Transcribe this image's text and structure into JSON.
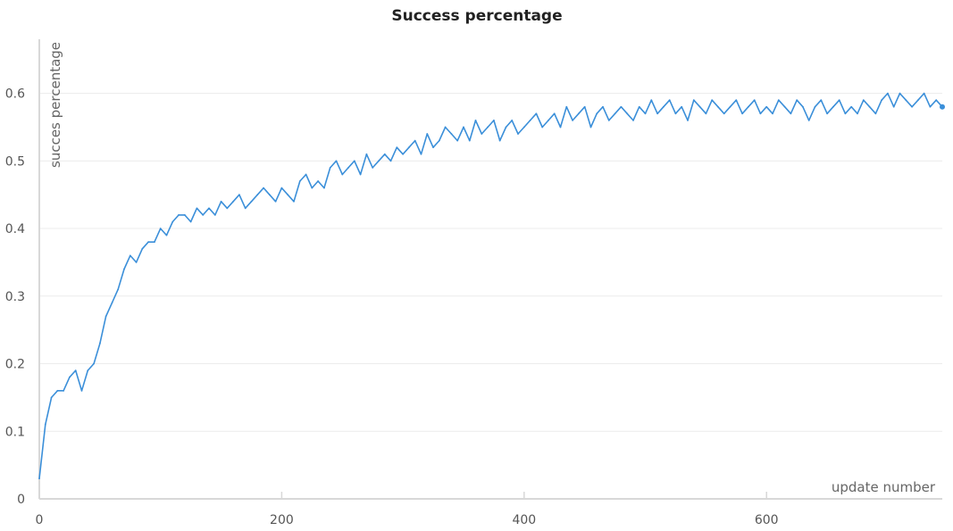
{
  "chart_data": {
    "type": "line",
    "title": "Success percentage",
    "xlabel": "update number",
    "ylabel": "succes percentage",
    "xlim": [
      0,
      745
    ],
    "ylim": [
      0,
      0.68
    ],
    "x_ticks": [
      0,
      200,
      400,
      600
    ],
    "y_ticks": [
      0,
      0.1,
      0.2,
      0.3,
      0.4,
      0.5,
      0.6
    ],
    "grid": "horizontal",
    "legend": "none",
    "colors": {
      "line": "#3b8fd9",
      "grid": "#ececec",
      "axis": "#d8d8d8"
    },
    "series": [
      {
        "x": [
          0,
          5,
          10,
          15,
          20,
          25,
          30,
          35,
          40,
          45,
          50,
          55,
          60,
          65,
          70,
          75,
          80,
          85,
          90,
          95,
          100,
          105,
          110,
          115,
          120,
          125,
          130,
          135,
          140,
          145,
          150,
          155,
          160,
          165,
          170,
          175,
          180,
          185,
          190,
          195,
          200,
          205,
          210,
          215,
          220,
          225,
          230,
          235,
          240,
          245,
          250,
          255,
          260,
          265,
          270,
          275,
          280,
          285,
          290,
          295,
          300,
          305,
          310,
          315,
          320,
          325,
          330,
          335,
          340,
          345,
          350,
          355,
          360,
          365,
          370,
          375,
          380,
          385,
          390,
          395,
          400,
          405,
          410,
          415,
          420,
          425,
          430,
          435,
          440,
          445,
          450,
          455,
          460,
          465,
          470,
          475,
          480,
          485,
          490,
          495,
          500,
          505,
          510,
          515,
          520,
          525,
          530,
          535,
          540,
          545,
          550,
          555,
          560,
          565,
          570,
          575,
          580,
          585,
          590,
          595,
          600,
          605,
          610,
          615,
          620,
          625,
          630,
          635,
          640,
          645,
          650,
          655,
          660,
          665,
          670,
          675,
          680,
          685,
          690,
          695,
          700,
          705,
          710,
          715,
          720,
          725,
          730,
          735,
          740,
          745
        ],
        "values": [
          0.03,
          0.11,
          0.15,
          0.16,
          0.16,
          0.18,
          0.19,
          0.16,
          0.19,
          0.2,
          0.23,
          0.27,
          0.29,
          0.31,
          0.34,
          0.36,
          0.35,
          0.37,
          0.38,
          0.38,
          0.4,
          0.39,
          0.41,
          0.42,
          0.42,
          0.41,
          0.43,
          0.42,
          0.43,
          0.42,
          0.44,
          0.43,
          0.44,
          0.45,
          0.43,
          0.44,
          0.45,
          0.46,
          0.45,
          0.44,
          0.46,
          0.45,
          0.44,
          0.47,
          0.48,
          0.46,
          0.47,
          0.46,
          0.49,
          0.5,
          0.48,
          0.49,
          0.5,
          0.48,
          0.51,
          0.49,
          0.5,
          0.51,
          0.5,
          0.52,
          0.51,
          0.52,
          0.53,
          0.51,
          0.54,
          0.52,
          0.53,
          0.55,
          0.54,
          0.53,
          0.55,
          0.53,
          0.56,
          0.54,
          0.55,
          0.56,
          0.53,
          0.55,
          0.56,
          0.54,
          0.55,
          0.56,
          0.57,
          0.55,
          0.56,
          0.57,
          0.55,
          0.58,
          0.56,
          0.57,
          0.58,
          0.55,
          0.57,
          0.58,
          0.56,
          0.57,
          0.58,
          0.57,
          0.56,
          0.58,
          0.57,
          0.59,
          0.57,
          0.58,
          0.59,
          0.57,
          0.58,
          0.56,
          0.59,
          0.58,
          0.57,
          0.59,
          0.58,
          0.57,
          0.58,
          0.59,
          0.57,
          0.58,
          0.59,
          0.57,
          0.58,
          0.57,
          0.59,
          0.58,
          0.57,
          0.59,
          0.58,
          0.56,
          0.58,
          0.59,
          0.57,
          0.58,
          0.59,
          0.57,
          0.58,
          0.57,
          0.59,
          0.58,
          0.57,
          0.59,
          0.6,
          0.58,
          0.6,
          0.59,
          0.58,
          0.59,
          0.6,
          0.58,
          0.59,
          0.58
        ]
      }
    ]
  }
}
